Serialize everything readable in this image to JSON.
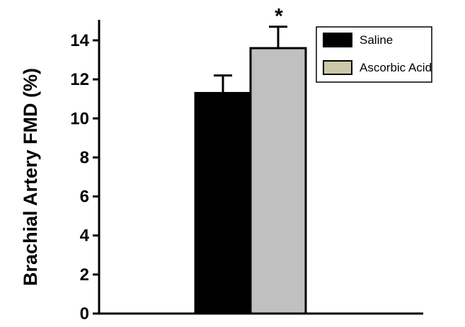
{
  "chart_data": {
    "type": "bar",
    "title": "",
    "ylabel": "Brachial Artery FMD (%)",
    "xlabel": "",
    "ylim": [
      0,
      14
    ],
    "yticks": [
      0,
      2,
      4,
      6,
      8,
      10,
      12,
      14
    ],
    "categories": [
      ""
    ],
    "series": [
      {
        "name": "Saline",
        "values": [
          11.3
        ],
        "error": [
          0.9
        ],
        "color": "#000000"
      },
      {
        "name": "Ascorbic Acid",
        "values": [
          13.6
        ],
        "error": [
          1.1
        ],
        "color": "#c0c0c0"
      }
    ],
    "legend": {
      "placement": "top-right",
      "entries": [
        {
          "label": "Saline",
          "swatch_color": "#000000"
        },
        {
          "label": "Ascorbic Acid",
          "swatch_color": "#ccc8a8"
        }
      ]
    },
    "annotations": [
      {
        "text": "*",
        "series": "Ascorbic Acid"
      }
    ]
  }
}
